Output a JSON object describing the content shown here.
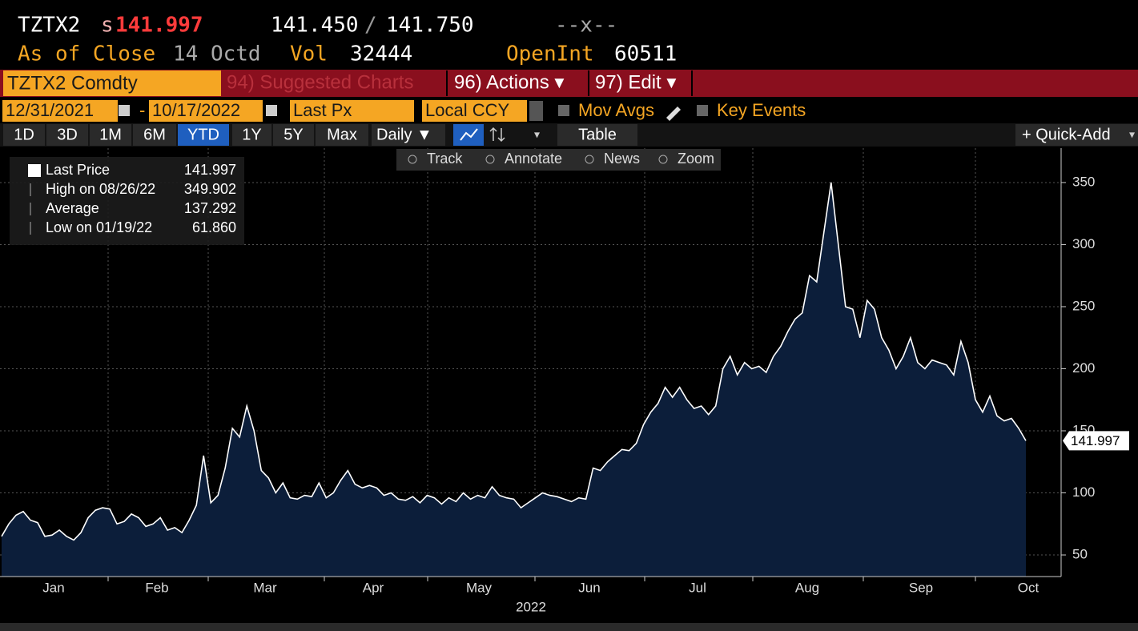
{
  "header": {
    "ticker": "TZTX2",
    "price_prefix": "s",
    "price": "141.997",
    "bid": "141.450",
    "separator": "/",
    "ask": "141.750",
    "change": "--x--",
    "as_of_label": "As of Close",
    "as_of_date": "14 Octd",
    "vol_label": "Vol",
    "vol": "32444",
    "openint_label": "OpenInt",
    "openint": "60511"
  },
  "menu": {
    "security": "TZTX2 Comdty",
    "suggested": "94) Suggested Charts",
    "actions": "96) Actions ▾",
    "edit": "97) Edit ▾"
  },
  "settings": {
    "start_date": "12/31/2021",
    "dash": "-",
    "end_date": "10/17/2022",
    "field": "Last Px",
    "currency": "Local CCY",
    "mov_avgs": "Mov Avgs",
    "key_events": "Key Events"
  },
  "periods": [
    "1D",
    "3D",
    "1M",
    "6M",
    "YTD",
    "1Y",
    "5Y",
    "Max"
  ],
  "active_period": "YTD",
  "frequency": "Daily ▼",
  "table": "Table",
  "quick_add": "+ Quick-Add",
  "chart_tools": [
    "Track",
    "Annotate",
    "News",
    "Zoom"
  ],
  "chart_data": {
    "type": "area",
    "xtick_labels": [
      "Jan",
      "Feb",
      "Mar",
      "Apr",
      "May",
      "Jun",
      "Jul",
      "Aug",
      "Sep",
      "Oct"
    ],
    "xlabel": "2022",
    "values": [
      65,
      75,
      82,
      85,
      78,
      76,
      65,
      66,
      70,
      65,
      62,
      68,
      80,
      86,
      88,
      87,
      75,
      77,
      83,
      80,
      73,
      75,
      80,
      70,
      72,
      68,
      78,
      90,
      130,
      92,
      98,
      120,
      152,
      145,
      170,
      150,
      118,
      112,
      100,
      108,
      96,
      95,
      98,
      97,
      108,
      96,
      100,
      110,
      118,
      107,
      104,
      106,
      104,
      98,
      100,
      95,
      94,
      97,
      92,
      98,
      96,
      91,
      96,
      93,
      100,
      95,
      98,
      96,
      105,
      98,
      96,
      95,
      88,
      92,
      96,
      100,
      98,
      97,
      95,
      93,
      96,
      95,
      120,
      118,
      125,
      130,
      135,
      134,
      140,
      155,
      165,
      172,
      185,
      177,
      185,
      175,
      168,
      170,
      163,
      170,
      200,
      210,
      195,
      205,
      200,
      202,
      197,
      210,
      218,
      230,
      240,
      245,
      275,
      270,
      310,
      350,
      300,
      250,
      248,
      225,
      255,
      248,
      225,
      215,
      200,
      210,
      225,
      205,
      200,
      207,
      205,
      203,
      195,
      222,
      205,
      175,
      165,
      178,
      162,
      158,
      160,
      152,
      141.997
    ],
    "color": "#0c1e3a",
    "line_color": "#ffffff",
    "ylim": [
      32.6,
      377.7
    ],
    "yticks": [
      50,
      100,
      150,
      200,
      250,
      300,
      350
    ],
    "grid": true,
    "last_label": "141.997",
    "legend": [
      {
        "label": "Last Price",
        "value": "141.997"
      },
      {
        "label": "High on 08/26/22",
        "value": "349.902"
      },
      {
        "label": "Average",
        "value": "137.292"
      },
      {
        "label": "Low on 01/19/22",
        "value": "61.860"
      }
    ]
  }
}
